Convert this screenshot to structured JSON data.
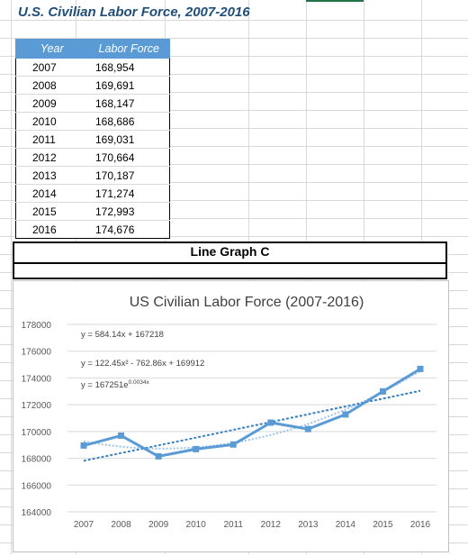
{
  "sheet": {
    "title": "U.S. Civilian Labor Force, 2007-2016",
    "table": {
      "headers": [
        "Year",
        "Labor Force"
      ],
      "rows": [
        [
          "2007",
          "168,954"
        ],
        [
          "2008",
          "169,691"
        ],
        [
          "2009",
          "168,147"
        ],
        [
          "2010",
          "168,686"
        ],
        [
          "2011",
          "169,031"
        ],
        [
          "2012",
          "170,664"
        ],
        [
          "2013",
          "170,187"
        ],
        [
          "2014",
          "171,274"
        ],
        [
          "2015",
          "172,993"
        ],
        [
          "2016",
          "174,676"
        ]
      ]
    },
    "graph_label": "Line Graph C",
    "colors": {
      "header_fill": "#5b9bd5",
      "title_text": "#1f4e79",
      "series": "#5b9bd5"
    }
  },
  "chart_data": {
    "type": "line",
    "title": "US Civilian Labor Force (2007-2016)",
    "xlabel": "",
    "ylabel": "",
    "categories": [
      "2007",
      "2008",
      "2009",
      "2010",
      "2011",
      "2012",
      "2013",
      "2014",
      "2015",
      "2016"
    ],
    "values": [
      168954,
      169691,
      168147,
      168686,
      169031,
      170664,
      170187,
      171274,
      172993,
      174676
    ],
    "ylim": [
      164000,
      178000
    ],
    "yticks": [
      "178000",
      "176000",
      "174000",
      "172000",
      "170000",
      "168000",
      "166000",
      "164000"
    ],
    "grid": true,
    "trendlines": [
      {
        "kind": "linear",
        "equation": "y = 584.14x + 167218"
      },
      {
        "kind": "polynomial",
        "equation": "y = 122.45x² - 762.86x + 169912"
      },
      {
        "kind": "exponential",
        "equation": "y = 167251e",
        "exponent": "0.0034x"
      }
    ]
  }
}
